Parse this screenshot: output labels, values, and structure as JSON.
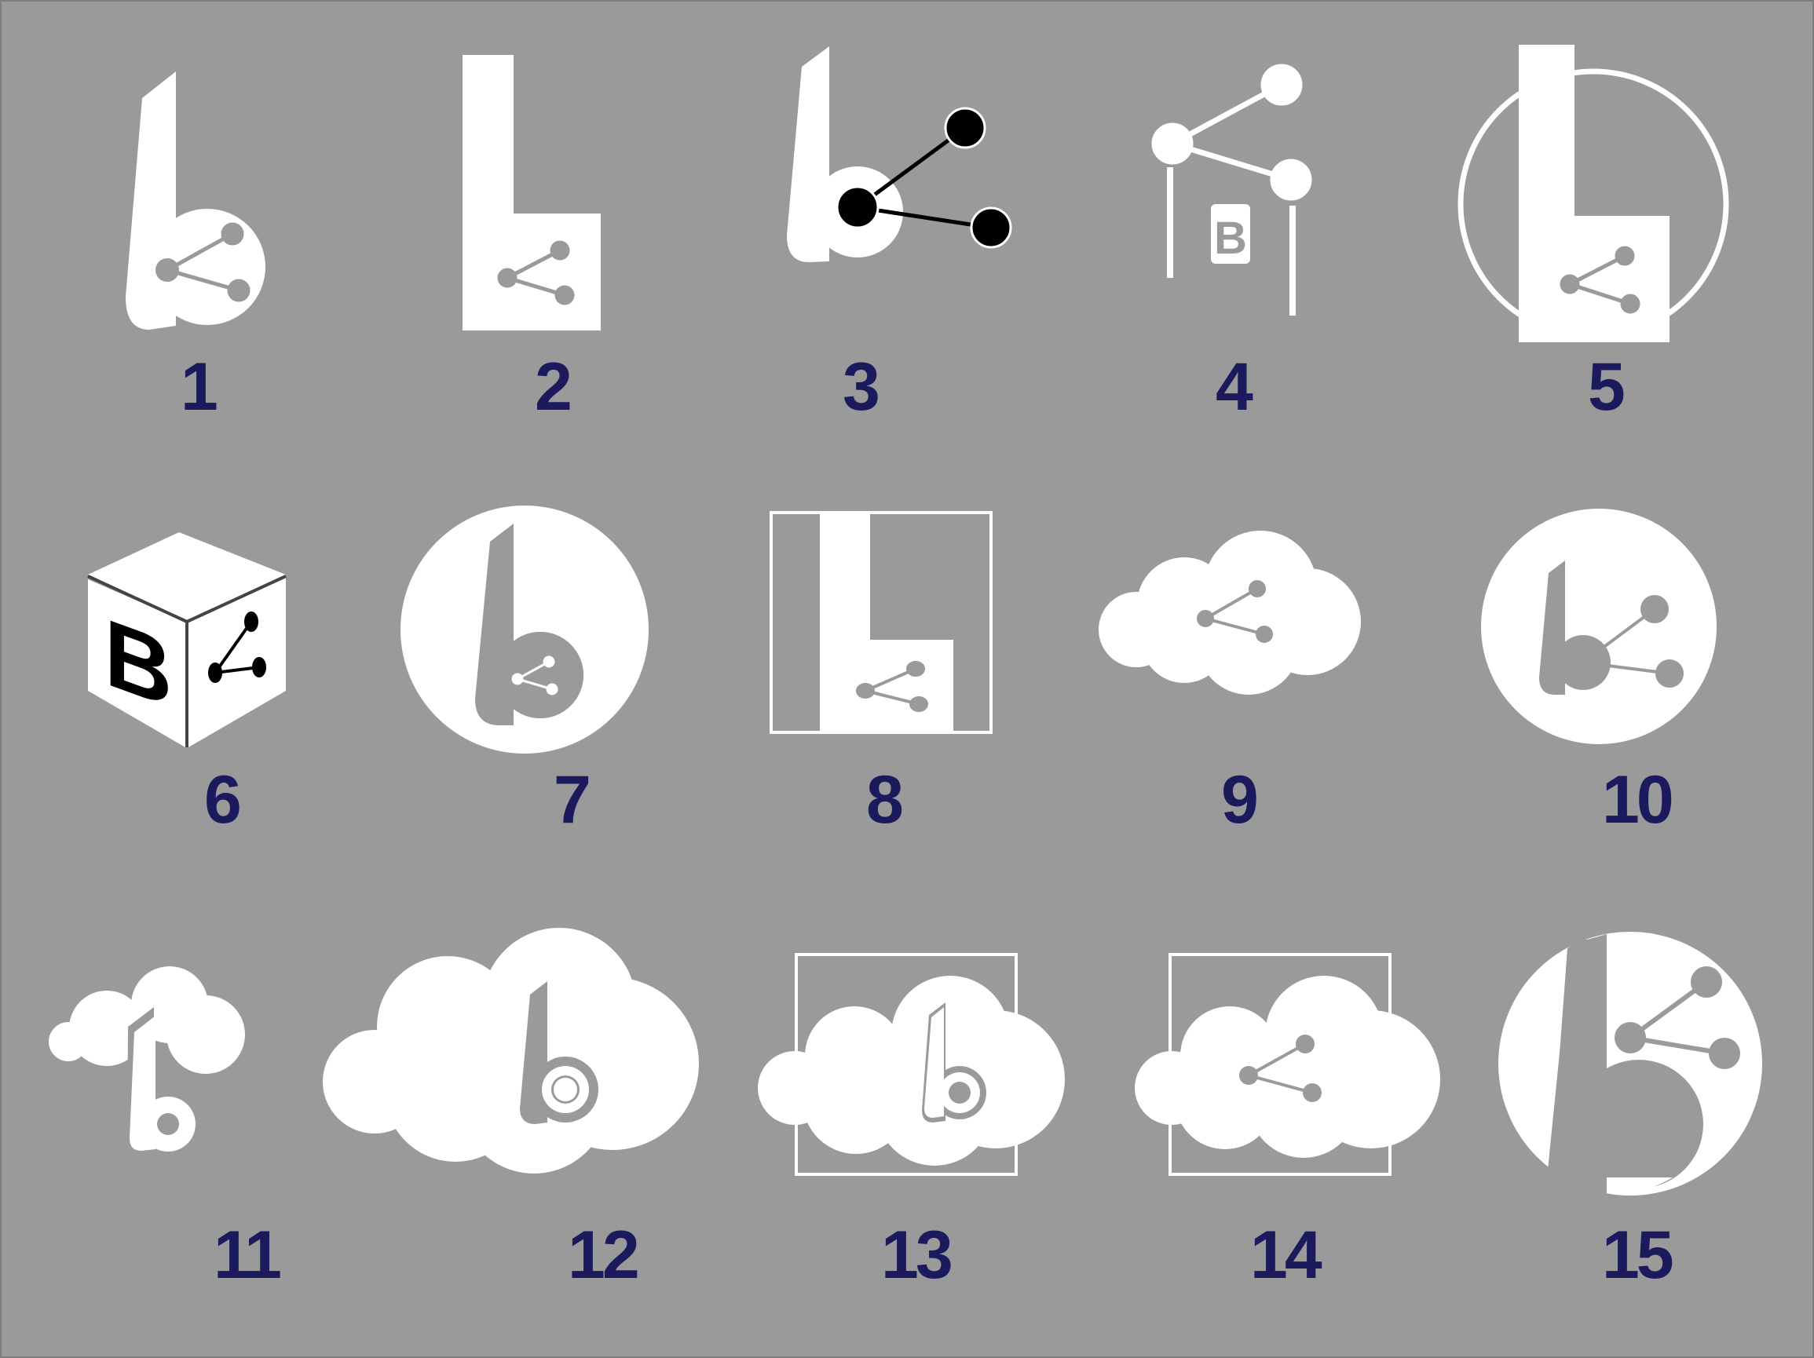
{
  "colors": {
    "background": "#9a9a9a",
    "logo": "#ffffff",
    "number": "#1a1a5c",
    "accent": "#000000"
  },
  "cube_letter": "B",
  "logos": [
    {
      "number": "1",
      "icon": "b-share-logo"
    },
    {
      "number": "2",
      "icon": "block-b-share-logo"
    },
    {
      "number": "3",
      "icon": "b-network-logo"
    },
    {
      "number": "4",
      "icon": "network-b-logo"
    },
    {
      "number": "5",
      "icon": "b-circle-logo"
    },
    {
      "number": "6",
      "icon": "cube-b-logo"
    },
    {
      "number": "7",
      "icon": "b-disc-logo"
    },
    {
      "number": "8",
      "icon": "b-square-frame-logo"
    },
    {
      "number": "9",
      "icon": "cloud-share-logo"
    },
    {
      "number": "10",
      "icon": "b-share-disc-logo"
    },
    {
      "number": "11",
      "icon": "cloud-b-logo"
    },
    {
      "number": "12",
      "icon": "big-cloud-b-logo"
    },
    {
      "number": "13",
      "icon": "cloud-b-frame-logo"
    },
    {
      "number": "14",
      "icon": "cloud-share-frame-logo"
    },
    {
      "number": "15",
      "icon": "b-share-circle-logo"
    }
  ]
}
